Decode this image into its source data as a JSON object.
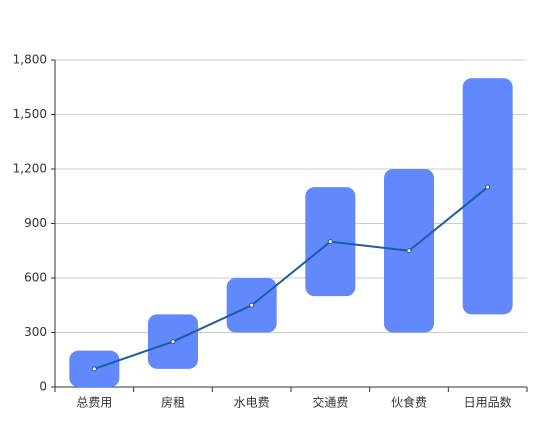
{
  "chart_data": {
    "type": "range-bar-line",
    "categories": [
      "总费用",
      "房租",
      "水电费",
      "交通费",
      "伙食费",
      "日用品数"
    ],
    "low": [
      0,
      100,
      300,
      500,
      300,
      400
    ],
    "high": [
      200,
      400,
      600,
      1100,
      1200,
      1700
    ],
    "line_values": [
      100,
      250,
      450,
      800,
      750,
      1100
    ],
    "color": "#6188fd",
    "line_color": "#1f5c99",
    "ylim": [
      0,
      1800
    ],
    "yticks": [
      0,
      300,
      600,
      900,
      {
        "value": 1200,
        "label": "1,200"
      },
      {
        "value": 1500,
        "label": "1,500"
      },
      {
        "value": 1800,
        "label": "1,800"
      }
    ],
    "grid": true
  }
}
